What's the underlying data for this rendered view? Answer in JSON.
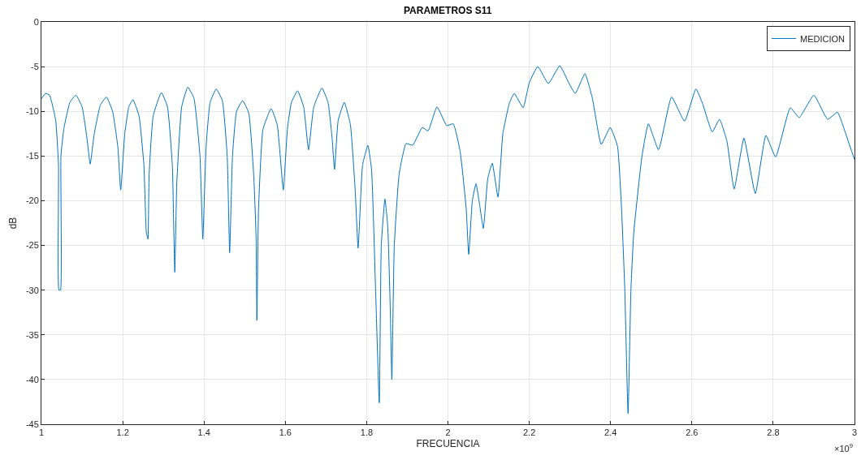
{
  "chart_data": {
    "type": "line",
    "title": "PARAMETROS S11",
    "xlabel": "FRECUENCIA",
    "ylabel": "dB",
    "annotations": [
      "×10$^{9}$"
    ],
    "xlim": [
      1,
      3
    ],
    "xticks": [
      1,
      1.2,
      1.4,
      1.6,
      1.8,
      2,
      2.2,
      2.4,
      2.6,
      2.8,
      3
    ],
    "ylim": [
      -45,
      0
    ],
    "yticks": [
      -45,
      -40,
      -35,
      -30,
      -25,
      -20,
      -15,
      -10,
      -5,
      0
    ],
    "grid": true,
    "legend": "top right",
    "marker": "none",
    "line_style": "solid",
    "x": [
      1.0,
      1.01,
      1.02,
      1.035,
      1.042,
      1.043,
      1.047,
      1.048,
      1.055,
      1.07,
      1.085,
      1.1,
      1.112,
      1.12,
      1.13,
      1.145,
      1.16,
      1.175,
      1.188,
      1.195,
      1.205,
      1.215,
      1.225,
      1.24,
      1.252,
      1.258,
      1.262,
      1.265,
      1.275,
      1.295,
      1.31,
      1.322,
      1.328,
      1.333,
      1.345,
      1.36,
      1.375,
      1.39,
      1.397,
      1.405,
      1.415,
      1.43,
      1.445,
      1.457,
      1.463,
      1.47,
      1.48,
      1.495,
      1.51,
      1.522,
      1.528,
      1.53,
      1.534,
      1.545,
      1.565,
      1.58,
      1.595,
      1.605,
      1.615,
      1.63,
      1.645,
      1.657,
      1.67,
      1.69,
      1.705,
      1.715,
      1.721,
      1.73,
      1.745,
      1.76,
      1.772,
      1.779,
      1.79,
      1.803,
      1.812,
      1.822,
      1.831,
      1.836,
      1.845,
      1.852,
      1.858,
      1.862,
      1.868,
      1.88,
      1.897,
      1.913,
      1.937,
      1.951,
      1.973,
      1.997,
      2.013,
      2.03,
      2.045,
      2.051,
      2.06,
      2.069,
      2.078,
      2.087,
      2.098,
      2.109,
      2.123,
      2.135,
      2.151,
      2.163,
      2.185,
      2.2,
      2.221,
      2.247,
      2.275,
      2.297,
      2.313,
      2.337,
      2.355,
      2.377,
      2.399,
      2.417,
      2.427,
      2.435,
      2.443,
      2.45,
      2.457,
      2.477,
      2.493,
      2.518,
      2.55,
      2.582,
      2.61,
      2.626,
      2.65,
      2.668,
      2.686,
      2.704,
      2.728,
      2.756,
      2.782,
      2.806,
      2.842,
      2.864,
      2.9,
      2.934,
      2.958,
      2.982,
      3.0
    ],
    "series": [
      {
        "name": "MEDICION",
        "color": "#0072bd",
        "values": [
          -8.6,
          -8.0,
          -8.2,
          -11,
          -16,
          -30,
          -30,
          -15,
          -12,
          -9,
          -8.2,
          -9.5,
          -13,
          -15.9,
          -12.5,
          -9.3,
          -8.4,
          -10,
          -14,
          -18.8,
          -12.5,
          -9.5,
          -8.7,
          -10.5,
          -16,
          -23.5,
          -24.3,
          -17,
          -10.5,
          -7.9,
          -9.5,
          -16,
          -28,
          -18,
          -9.5,
          -7.3,
          -8.5,
          -15,
          -24.3,
          -14,
          -9,
          -7.5,
          -8.8,
          -15,
          -25.8,
          -15,
          -10,
          -8.8,
          -10.2,
          -17,
          -24,
          -33.4,
          -21,
          -12,
          -9.7,
          -11.5,
          -18.8,
          -12,
          -9,
          -7.7,
          -9.5,
          -14.3,
          -9.5,
          -7.4,
          -9,
          -13,
          -16.5,
          -11,
          -9,
          -11.5,
          -19,
          -25.3,
          -16,
          -13.8,
          -16.5,
          -30,
          -42.6,
          -25,
          -19.8,
          -23,
          -32,
          -40,
          -25,
          -17,
          -13.6,
          -13.8,
          -11.8,
          -12.2,
          -9.5,
          -11.6,
          -11.4,
          -14.5,
          -21,
          -26,
          -20,
          -18.1,
          -20.5,
          -23.1,
          -17.5,
          -15.8,
          -19.6,
          -12.5,
          -9.1,
          -8,
          -9.6,
          -6.8,
          -5.0,
          -6.9,
          -4.9,
          -6.8,
          -8.0,
          -5.8,
          -8.5,
          -13.7,
          -11.8,
          -13.9,
          -20.9,
          -30,
          -43.8,
          -30,
          -23.6,
          -15.1,
          -11.4,
          -14.3,
          -8.4,
          -11.1,
          -7.5,
          -9.1,
          -12.3,
          -10.9,
          -13.3,
          -18.7,
          -13.0,
          -19.2,
          -12.7,
          -15.1,
          -9.6,
          -10.7,
          -8.2,
          -10.9,
          -10.1,
          -13.0,
          -15.4
        ]
      }
    ]
  }
}
